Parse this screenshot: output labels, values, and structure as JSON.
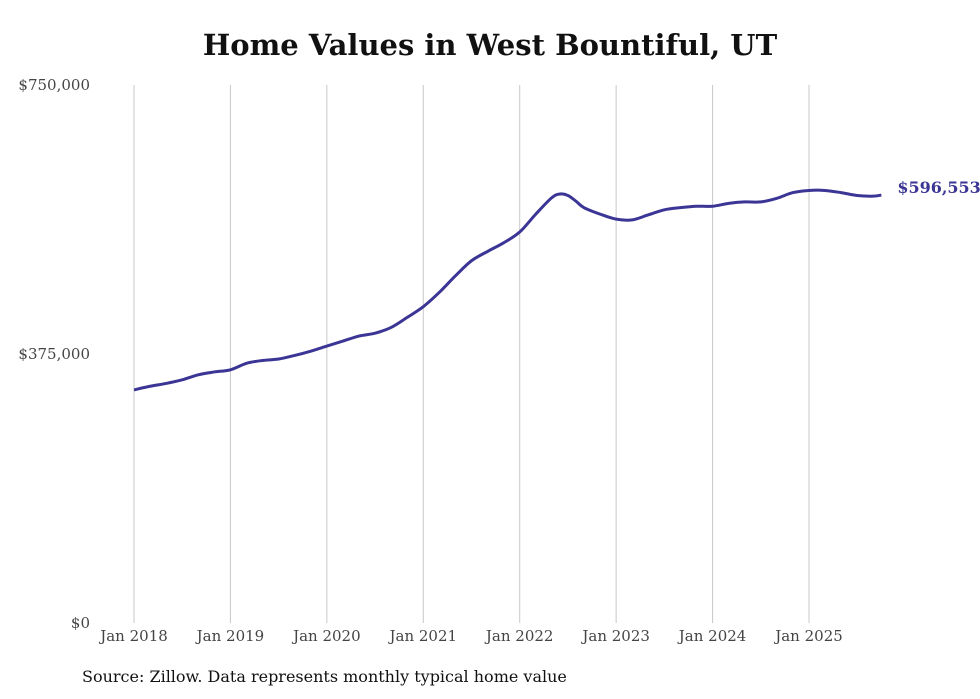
{
  "chart_data": {
    "type": "line",
    "title": "Home Values in West Bountiful, UT",
    "xlabel": "",
    "ylabel": "",
    "ylim": [
      0,
      750000
    ],
    "y_ticks": [
      {
        "value": 0,
        "label": "$0"
      },
      {
        "value": 375000,
        "label": "$375,000"
      },
      {
        "value": 750000,
        "label": "$750,000"
      }
    ],
    "x_ticks": [
      {
        "value": 0,
        "label": "Jan 2018"
      },
      {
        "value": 12,
        "label": "Jan 2019"
      },
      {
        "value": 24,
        "label": "Jan 2020"
      },
      {
        "value": 36,
        "label": "Jan 2021"
      },
      {
        "value": 48,
        "label": "Jan 2022"
      },
      {
        "value": 60,
        "label": "Jan 2023"
      },
      {
        "value": 72,
        "label": "Jan 2024"
      },
      {
        "value": 84,
        "label": "Jan 2025"
      }
    ],
    "grid": "vertical",
    "series": [
      {
        "name": "Typical home value",
        "color": "#3b3595",
        "x": [
          0,
          2,
          4,
          6,
          8,
          10,
          12,
          14,
          16,
          18,
          20,
          22,
          24,
          26,
          28,
          30,
          32,
          34,
          36,
          38,
          40,
          42,
          44,
          46,
          48,
          50,
          52,
          53,
          54,
          55,
          56,
          58,
          60,
          62,
          64,
          66,
          68,
          70,
          72,
          74,
          76,
          78,
          80,
          82,
          84,
          86,
          88,
          90,
          92,
          93
        ],
        "values": [
          325000,
          330000,
          334000,
          339000,
          346000,
          350000,
          353000,
          362000,
          366000,
          368000,
          373000,
          379000,
          386000,
          393000,
          400000,
          404000,
          412000,
          426000,
          441000,
          461000,
          484000,
          505000,
          518000,
          530000,
          545000,
          570000,
          593000,
          598000,
          596000,
          588000,
          579000,
          570000,
          563000,
          562000,
          569000,
          576000,
          579000,
          581000,
          581000,
          585000,
          587000,
          587000,
          592000,
          600000,
          603000,
          603000,
          600000,
          596000,
          595000,
          596553
        ]
      }
    ],
    "end_label": "$596,553"
  },
  "source": "Source: Zillow. Data represents monthly typical home value"
}
